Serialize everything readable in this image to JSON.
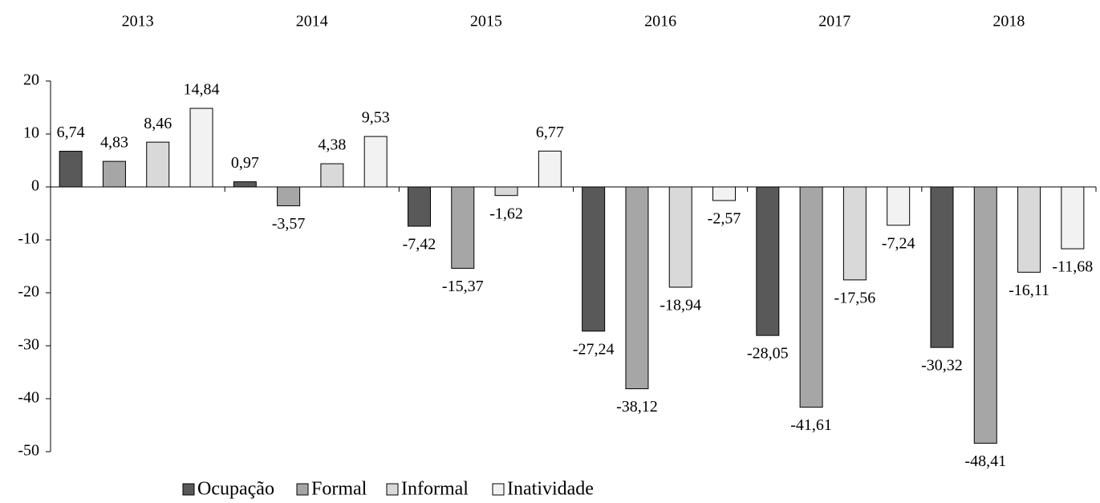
{
  "chart_data": {
    "type": "bar",
    "categories": [
      "2013",
      "2014",
      "2015",
      "2016",
      "2017",
      "2018"
    ],
    "series": [
      {
        "name": "Ocupação",
        "color": "#595959",
        "values": [
          6.74,
          0.97,
          -7.42,
          -27.24,
          -28.05,
          -30.32
        ],
        "value_labels": [
          "6,74",
          "0,97",
          "-7,42",
          "-27,24",
          "-28,05",
          "-30,32"
        ]
      },
      {
        "name": "Formal",
        "color": "#a6a6a6",
        "values": [
          4.83,
          -3.57,
          -15.37,
          -38.12,
          -41.61,
          -48.41
        ],
        "value_labels": [
          "4,83",
          "-3,57",
          "-15,37",
          "-38,12",
          "-41,61",
          "-48,41"
        ]
      },
      {
        "name": "Informal",
        "color": "#d9d9d9",
        "values": [
          8.46,
          4.38,
          -1.62,
          -18.94,
          -17.56,
          -16.11
        ],
        "value_labels": [
          "8,46",
          "4,38",
          "-1,62",
          "-18,94",
          "-17,56",
          "-16,11"
        ]
      },
      {
        "name": "Inatividade",
        "color": "#f2f2f2",
        "values": [
          14.84,
          9.53,
          6.77,
          -2.57,
          -7.24,
          -11.68
        ],
        "value_labels": [
          "14,84",
          "9,53",
          "6,77",
          "-2,57",
          "-7,24",
          "-11,68"
        ]
      }
    ],
    "ylim": [
      -50,
      20
    ],
    "yticks": [
      -50,
      -40,
      -30,
      -20,
      -10,
      0,
      10,
      20
    ],
    "grid": false,
    "legend": "bottom"
  }
}
